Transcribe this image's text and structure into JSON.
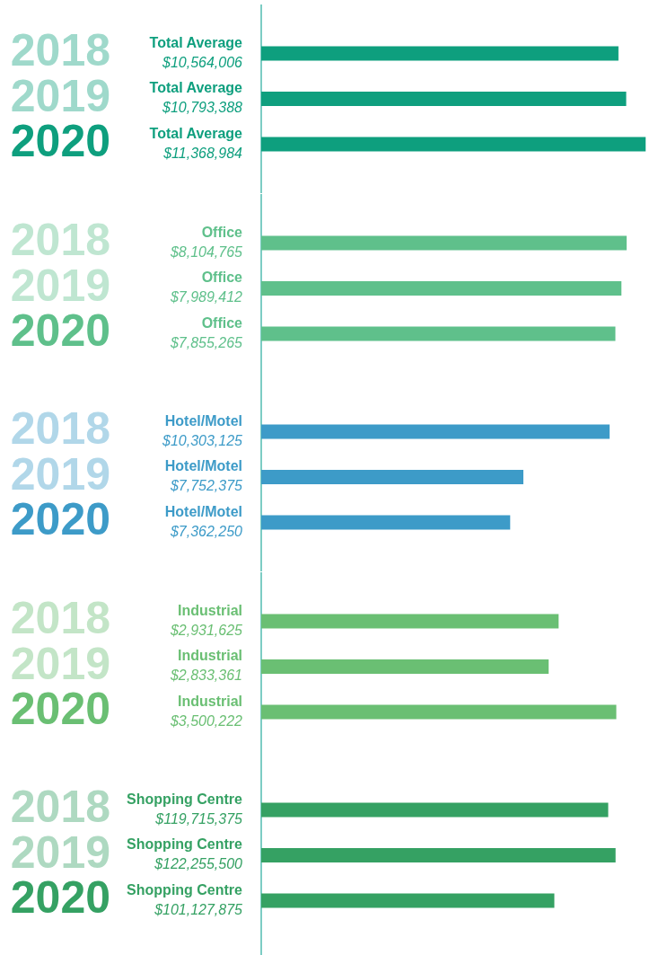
{
  "chart_data": [
    {
      "type": "bar",
      "orientation": "horizontal",
      "tick_labels": "y",
      "categories": [
        "2018",
        "2019",
        "2020"
      ],
      "series": [
        {
          "name": "Total Average",
          "color": "#0e9f7e",
          "values": [
            10564006,
            10793388,
            11368984
          ],
          "value_labels": [
            "$10,564,006",
            "$10,793,388",
            "$11,368,984"
          ]
        }
      ]
    },
    {
      "type": "bar",
      "orientation": "horizontal",
      "tick_labels": "y",
      "categories": [
        "2018",
        "2019",
        "2020"
      ],
      "series": [
        {
          "name": "Office",
          "color": "#5fc08b",
          "values": [
            8104765,
            7989412,
            7855265
          ],
          "value_labels": [
            "$8,104,765",
            "$7,989,412",
            "$7,855,265"
          ]
        }
      ]
    },
    {
      "type": "bar",
      "orientation": "horizontal",
      "tick_labels": "y",
      "categories": [
        "2018",
        "2019",
        "2020"
      ],
      "series": [
        {
          "name": "Hotel/Motel",
          "color": "#3d9bc8",
          "values": [
            10303125,
            7752375,
            7362250
          ],
          "value_labels": [
            "$10,303,125",
            "$7,752,375",
            "$7,362,250"
          ]
        }
      ]
    },
    {
      "type": "bar",
      "orientation": "horizontal",
      "tick_labels": "y",
      "categories": [
        "2018",
        "2019",
        "2020"
      ],
      "series": [
        {
          "name": "Industrial",
          "color": "#6abf73",
          "values": [
            2931625,
            2833361,
            3500222
          ],
          "value_labels": [
            "$2,931,625",
            "$2,833,361",
            "$3,500,222"
          ]
        }
      ]
    },
    {
      "type": "bar",
      "orientation": "horizontal",
      "tick_labels": "y",
      "categories": [
        "2018",
        "2019",
        "2020"
      ],
      "series": [
        {
          "name": "Shopping Centre",
          "color": "#35a163",
          "values": [
            119715375,
            122255500,
            101127875
          ],
          "value_labels": [
            "$119,715,375",
            "$122,255,500",
            "$101,127,875"
          ]
        }
      ]
    }
  ]
}
